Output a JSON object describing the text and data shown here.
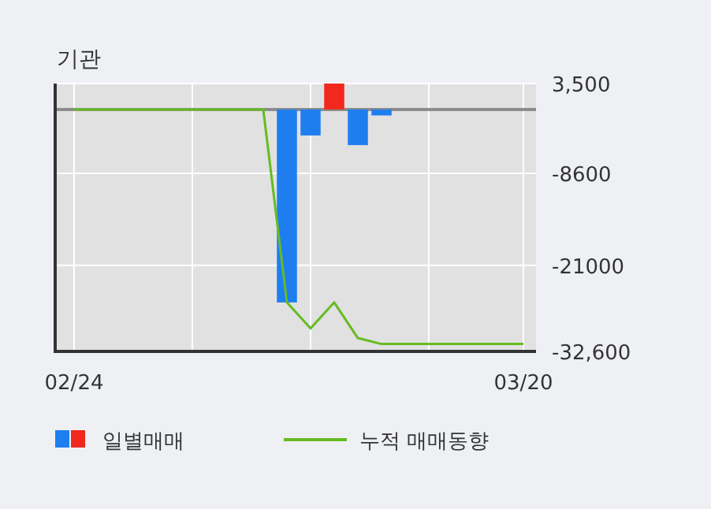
{
  "chart_data": {
    "type": "bar",
    "title": "기관",
    "categories": [
      "02/24",
      null,
      null,
      null,
      null,
      null,
      null,
      null,
      null,
      null,
      null,
      null,
      null,
      null,
      null,
      null,
      null,
      null,
      null,
      "03/20"
    ],
    "series": [
      {
        "name": "일별매매",
        "values": [
          null,
          null,
          null,
          null,
          null,
          null,
          null,
          null,
          null,
          -26000,
          -3500,
          3500,
          -4800,
          -800,
          null,
          null,
          null,
          null,
          null,
          null
        ],
        "colors": [
          null,
          null,
          null,
          null,
          null,
          null,
          null,
          null,
          null,
          "#1e7ef0",
          "#1e7ef0",
          "#f0281e",
          "#1e7ef0",
          "#1e7ef0",
          null,
          null,
          null,
          null,
          null,
          null
        ]
      },
      {
        "name": "누적 매매동향",
        "type": "line",
        "color": "#66bb22",
        "values": [
          0,
          0,
          0,
          0,
          0,
          0,
          0,
          0,
          0,
          -26000,
          -29500,
          -26000,
          -30800,
          -31600,
          -31600,
          -31600,
          -31600,
          -31600,
          -31600,
          -31600
        ]
      }
    ],
    "ylim": [
      -32600,
      3500
    ],
    "yticks": [
      {
        "value": 3500,
        "label": "3,500"
      },
      {
        "value": -8600,
        "label": "-8600"
      },
      {
        "value": -21000,
        "label": "-21000"
      },
      {
        "value": -32600,
        "label": "-32,600"
      }
    ],
    "ref_lines": [
      {
        "axis": "y",
        "value": 0,
        "color": "#8c8c8c"
      }
    ],
    "grid": true,
    "legend": "bottom"
  }
}
